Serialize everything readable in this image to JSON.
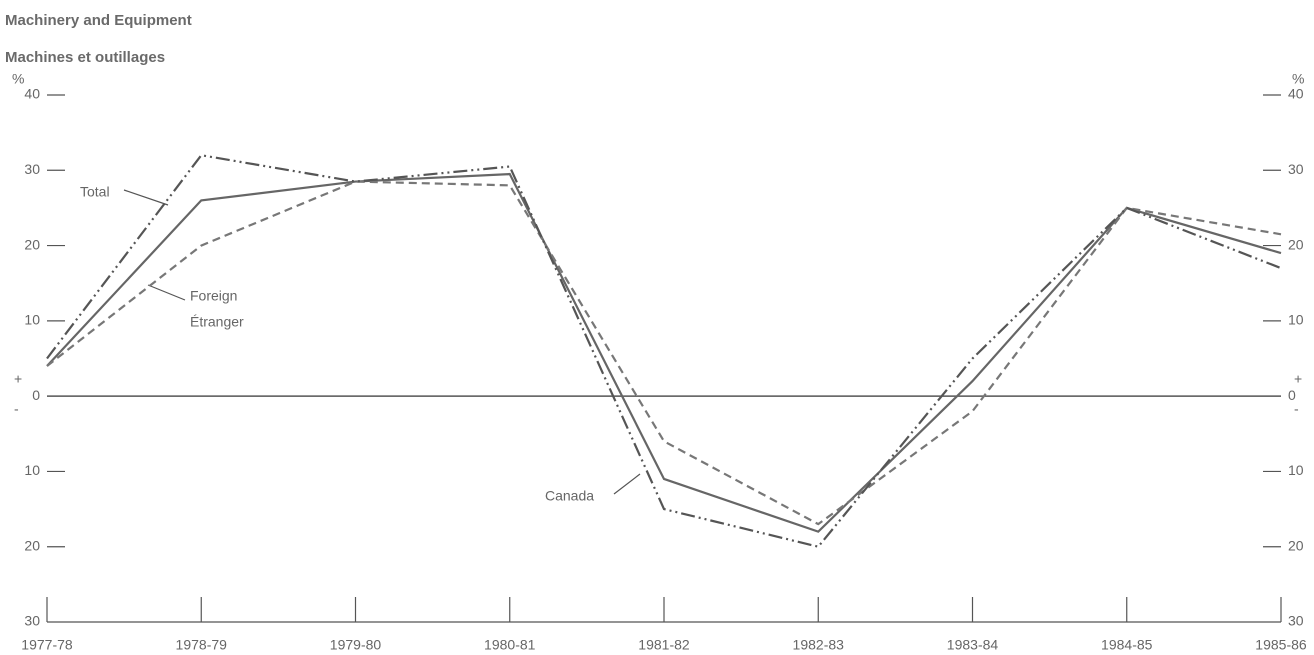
{
  "chart_data": {
    "type": "line",
    "title": "Machinery and Equipment",
    "subtitle": "Machines et outillages",
    "y_unit": "%",
    "y_plus": "+",
    "y_minus": "-",
    "categories": [
      "1977-78",
      "1978-79",
      "1979-80",
      "1980-81",
      "1981-82",
      "1982-83",
      "1983-84",
      "1984-85",
      "1985-86"
    ],
    "series": [
      {
        "name": "Total",
        "color": "#666666",
        "style": "solid",
        "values": [
          4,
          26,
          28.5,
          29.5,
          -11,
          -18,
          2,
          25,
          19
        ]
      },
      {
        "name": "Foreign",
        "name_fr": "Étranger",
        "color": "#777777",
        "style": "dashed",
        "values": [
          4,
          20,
          28.5,
          28,
          -6,
          -17,
          -2,
          25,
          21.5
        ]
      },
      {
        "name": "Canada",
        "color": "#555555",
        "style": "dash-dot-dot",
        "values": [
          5,
          32,
          28.5,
          30.5,
          -15,
          -20,
          5,
          25,
          17
        ]
      }
    ],
    "ylim": [
      -30,
      40
    ],
    "yticks": [
      {
        "value": -30,
        "label": "30"
      },
      {
        "value": -20,
        "label": "20"
      },
      {
        "value": -10,
        "label": "10"
      },
      0,
      10,
      20,
      30,
      40
    ]
  }
}
